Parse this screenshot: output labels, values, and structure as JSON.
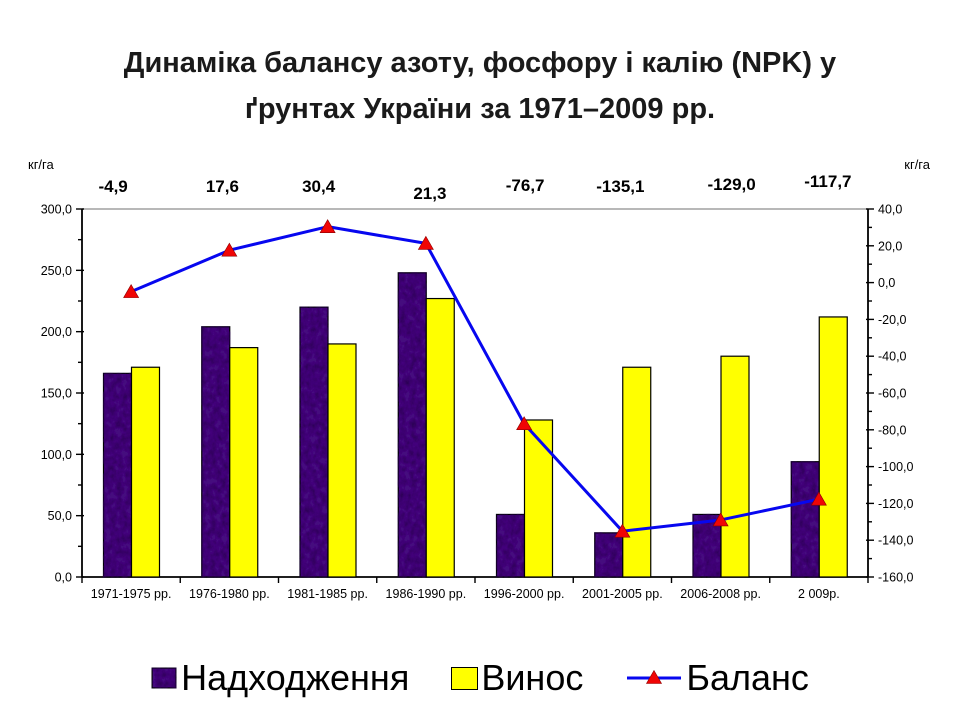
{
  "title": "Динаміка балансу азоту, фосфору і калію (NPK) у ґрунтах України за 1971–2009 рр.",
  "chart_data": {
    "type": "combo",
    "categories": [
      "1971-1975 рр.",
      "1976-1980 рр.",
      "1981-1985 рр.",
      "1986-1990 рр.",
      "1996-2000 рр.",
      "2001-2005 рр.",
      "2006-2008 рр.",
      "2 009р."
    ],
    "series": [
      {
        "name": "Надходження",
        "chart": "bar",
        "axis": "left",
        "color": "#45107E",
        "texture": "dark-marble",
        "values": [
          166,
          204,
          220,
          248,
          51,
          36,
          51,
          94
        ]
      },
      {
        "name": "Винос",
        "chart": "bar",
        "axis": "left",
        "color": "#FFFF00",
        "values": [
          171,
          187,
          190,
          227,
          128,
          171,
          180,
          212
        ]
      },
      {
        "name": "Баланс",
        "chart": "line",
        "axis": "right",
        "color": "#0707EF",
        "marker": "red-triangle",
        "marker_color": "#F00505",
        "values": [
          -4.9,
          17.6,
          30.4,
          21.3,
          -76.7,
          -135.1,
          -129.0,
          -117.7
        ]
      }
    ],
    "data_labels": [
      "-4,9",
      "17,6",
      "30,4",
      "21,3",
      "-76,7",
      "-135,1",
      "-129,0",
      "-117,7"
    ],
    "left_axis": {
      "unit": "кг/га",
      "min": 0,
      "max": 300,
      "major_step": 50,
      "minor_step": 25,
      "tick_labels": [
        "300,0",
        "250,0",
        "200,0",
        "150,0",
        "100,0",
        "50,0",
        "0,0"
      ]
    },
    "right_axis": {
      "unit": "кг/га",
      "min": -160,
      "max": 40,
      "major_step": 20,
      "minor_step": 10,
      "tick_labels": [
        "40,0",
        "20,0",
        "0,0",
        "-20,0",
        "-40,0",
        "-60,0",
        "-80,0",
        "-100,0",
        "-120,0",
        "-140,0",
        "-160,0"
      ]
    },
    "grid": "off",
    "legend_position": "bottom"
  },
  "legend": {
    "items": [
      {
        "label": "Надходження",
        "swatch": "purple-textured-square",
        "color": "#45107E"
      },
      {
        "label": "Винос",
        "swatch": "yellow-square",
        "color": "#FFFF00"
      },
      {
        "label": "Баланс",
        "swatch": "blue-line-red-triangle",
        "line_color": "#0707EF",
        "marker_color": "#F00505"
      }
    ]
  }
}
